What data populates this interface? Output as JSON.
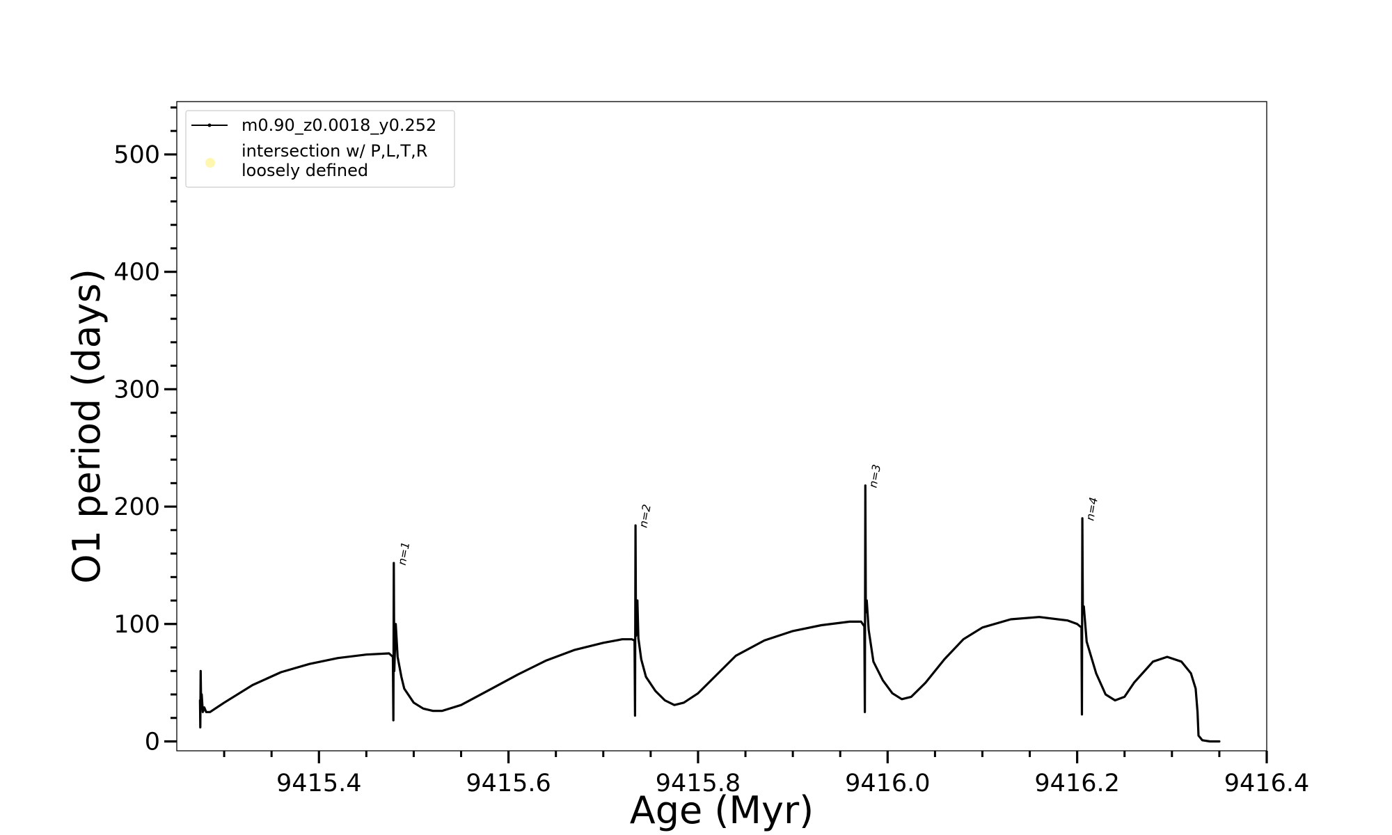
{
  "chart_data": {
    "type": "line",
    "title": "",
    "xlabel": "Age (Myr)",
    "ylabel": "O1 period (days)",
    "xlim": [
      9415.25,
      9416.4
    ],
    "ylim": [
      -8,
      545
    ],
    "x_ticks": [
      9415.4,
      9415.6,
      9415.8,
      9416.0,
      9416.2,
      9416.4
    ],
    "x_tick_labels": [
      "9415.4",
      "9415.6",
      "9415.8",
      "9416.0",
      "9416.2",
      "9416.4"
    ],
    "y_ticks": [
      0,
      100,
      200,
      300,
      400,
      500
    ],
    "y_tick_labels": [
      "0",
      "100",
      "200",
      "300",
      "400",
      "500"
    ],
    "grid": false,
    "legend": {
      "placement": "top-left",
      "entries": [
        {
          "label": "m0.90_z0.0018_y0.252",
          "marker": "line",
          "color": "#000000"
        },
        {
          "label": "intersection w/ P,L,T,R\nloosely defined",
          "marker": "circle",
          "color": "#fff7b0"
        }
      ]
    },
    "series": [
      {
        "name": "m0.90_z0.0018_y0.252",
        "color": "#000000",
        "points": [
          [
            9415.2745,
            35
          ],
          [
            9415.2748,
            12
          ],
          [
            9415.2752,
            60
          ],
          [
            9415.2757,
            30
          ],
          [
            9415.2763,
            40
          ],
          [
            9415.2775,
            25
          ],
          [
            9415.279,
            29
          ],
          [
            9415.281,
            25
          ],
          [
            9415.285,
            25
          ],
          [
            9415.3,
            33
          ],
          [
            9415.33,
            48
          ],
          [
            9415.36,
            59
          ],
          [
            9415.39,
            66
          ],
          [
            9415.42,
            71
          ],
          [
            9415.45,
            74
          ],
          [
            9415.474,
            75
          ],
          [
            9415.478,
            72
          ],
          [
            9415.4785,
            18
          ],
          [
            9415.479,
            152
          ],
          [
            9415.4795,
            60
          ],
          [
            9415.481,
            100
          ],
          [
            9415.483,
            72
          ],
          [
            9415.487,
            55
          ],
          [
            9415.49,
            45
          ],
          [
            9415.5,
            33
          ],
          [
            9415.51,
            28
          ],
          [
            9415.52,
            26
          ],
          [
            9415.53,
            26
          ],
          [
            9415.55,
            31
          ],
          [
            9415.58,
            44
          ],
          [
            9415.61,
            57
          ],
          [
            9415.64,
            69
          ],
          [
            9415.67,
            78
          ],
          [
            9415.7,
            84
          ],
          [
            9415.72,
            87
          ],
          [
            9415.73,
            87
          ],
          [
            9415.733,
            86
          ],
          [
            9415.7335,
            22
          ],
          [
            9415.734,
            184
          ],
          [
            9415.7345,
            90
          ],
          [
            9415.736,
            120
          ],
          [
            9415.737,
            88
          ],
          [
            9415.74,
            70
          ],
          [
            9415.745,
            55
          ],
          [
            9415.755,
            43
          ],
          [
            9415.765,
            35
          ],
          [
            9415.775,
            31
          ],
          [
            9415.785,
            33
          ],
          [
            9415.8,
            41
          ],
          [
            9415.82,
            57
          ],
          [
            9415.84,
            73
          ],
          [
            9415.87,
            86
          ],
          [
            9415.9,
            94
          ],
          [
            9415.93,
            99
          ],
          [
            9415.96,
            102
          ],
          [
            9415.972,
            102
          ],
          [
            9415.9755,
            98
          ],
          [
            9415.976,
            25
          ],
          [
            9415.9765,
            218
          ],
          [
            9415.977,
            110
          ],
          [
            9415.978,
            120
          ],
          [
            9415.98,
            95
          ],
          [
            9415.985,
            68
          ],
          [
            9415.995,
            52
          ],
          [
            9416.005,
            41
          ],
          [
            9416.015,
            36
          ],
          [
            9416.025,
            38
          ],
          [
            9416.04,
            50
          ],
          [
            9416.06,
            70
          ],
          [
            9416.08,
            87
          ],
          [
            9416.1,
            97
          ],
          [
            9416.13,
            104
          ],
          [
            9416.16,
            106
          ],
          [
            9416.19,
            103
          ],
          [
            9416.2,
            100
          ],
          [
            9416.2045,
            97
          ],
          [
            9416.205,
            23
          ],
          [
            9416.2055,
            190
          ],
          [
            9416.206,
            110
          ],
          [
            9416.207,
            115
          ],
          [
            9416.21,
            85
          ],
          [
            9416.22,
            58
          ],
          [
            9416.23,
            40
          ],
          [
            9416.24,
            35
          ],
          [
            9416.25,
            38
          ],
          [
            9416.26,
            50
          ],
          [
            9416.28,
            68
          ],
          [
            9416.295,
            72
          ],
          [
            9416.31,
            68
          ],
          [
            9416.32,
            58
          ],
          [
            9416.325,
            45
          ],
          [
            9416.327,
            25
          ],
          [
            9416.328,
            5
          ],
          [
            9416.332,
            1
          ],
          [
            9416.34,
            0
          ],
          [
            9416.35,
            0
          ]
        ]
      }
    ],
    "annotations": [
      {
        "text": "n=1",
        "x": 9415.4795,
        "y": 152
      },
      {
        "text": "n=2",
        "x": 9415.734,
        "y": 184
      },
      {
        "text": "n=3",
        "x": 9415.9765,
        "y": 218
      },
      {
        "text": "n=4",
        "x": 9416.2055,
        "y": 190
      }
    ]
  }
}
